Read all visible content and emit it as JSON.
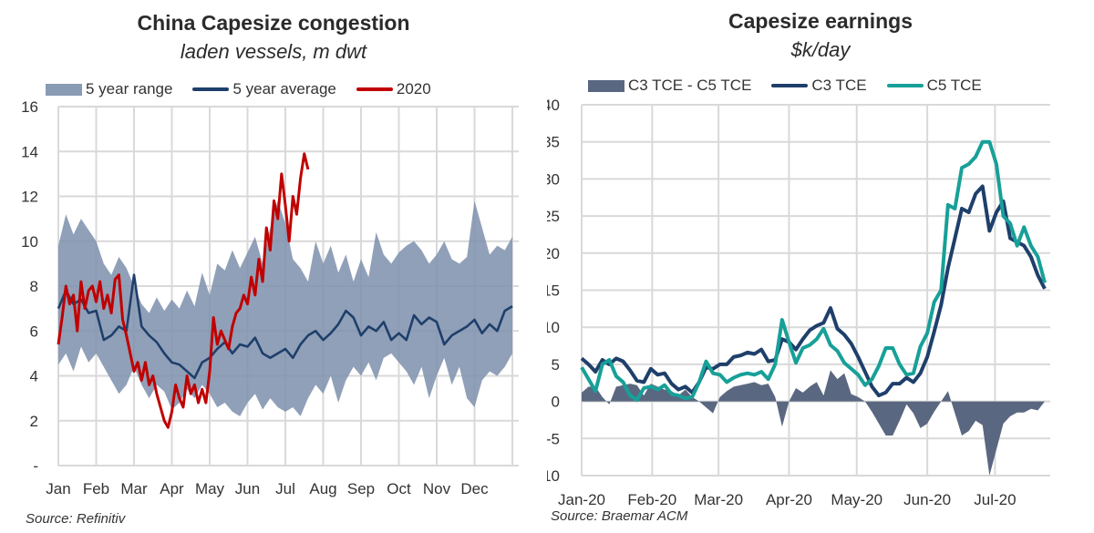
{
  "left": {
    "title": "China Capesize congestion",
    "subtitle": "laden vessels, m dwt",
    "source": "Source: Refinitiv",
    "legend": [
      {
        "label": "5 year range",
        "kind": "box",
        "color": "#8a9bb4"
      },
      {
        "label": "5 year average",
        "kind": "line",
        "color": "#1f3f6b"
      },
      {
        "label": "2020",
        "kind": "line",
        "color": "#c00000"
      }
    ]
  },
  "right": {
    "title": "Capesize earnings",
    "subtitle": "$k/day",
    "source": "Source: Braemar ACM",
    "legend": [
      {
        "label": "C3 TCE - C5 TCE",
        "kind": "box",
        "color": "#5a6780"
      },
      {
        "label": "C3 TCE",
        "kind": "line",
        "color": "#1f3f6b"
      },
      {
        "label": "C5 TCE",
        "kind": "line",
        "color": "#17a098"
      }
    ]
  },
  "chart_data": [
    {
      "type": "area",
      "title": "China Capesize congestion",
      "subtitle": "laden vessels, m dwt",
      "xlabel": "",
      "ylabel": "",
      "x_unit": "month index (0=Jan start, 12=Dec end)",
      "xlim": [
        0,
        12
      ],
      "ylim": [
        0,
        16
      ],
      "yticks": [
        0,
        2,
        4,
        6,
        8,
        10,
        12,
        14,
        16
      ],
      "ytick_labels": [
        "-",
        "2",
        "4",
        "6",
        "8",
        "10",
        "12",
        "14",
        "16"
      ],
      "xtick_labels": [
        "Jan",
        "Feb",
        "Mar",
        "Apr",
        "May",
        "Jun",
        "Jul",
        "Aug",
        "Sep",
        "Oct",
        "Nov",
        "Dec"
      ],
      "grid": true,
      "legend_position": "top",
      "series": [
        {
          "name": "5 year range",
          "kind": "band",
          "x": [
            0,
            0.2,
            0.4,
            0.6,
            0.8,
            1.0,
            1.2,
            1.4,
            1.6,
            1.8,
            2.0,
            2.2,
            2.4,
            2.6,
            2.8,
            3.0,
            3.2,
            3.4,
            3.6,
            3.8,
            4.0,
            4.2,
            4.4,
            4.6,
            4.8,
            5.0,
            5.2,
            5.4,
            5.6,
            5.8,
            6.0,
            6.2,
            6.4,
            6.6,
            6.8,
            7.0,
            7.2,
            7.4,
            7.6,
            7.8,
            8.0,
            8.2,
            8.4,
            8.6,
            8.8,
            9.0,
            9.2,
            9.4,
            9.6,
            9.8,
            10.0,
            10.2,
            10.4,
            10.6,
            10.8,
            11.0,
            11.2,
            11.4,
            11.6,
            11.8,
            12.0
          ],
          "upper": [
            9.8,
            11.2,
            10.3,
            11.0,
            10.5,
            10.0,
            9.0,
            8.5,
            9.3,
            8.8,
            8.0,
            7.2,
            6.8,
            7.5,
            6.9,
            7.4,
            7.0,
            7.8,
            7.1,
            8.6,
            7.6,
            9.0,
            8.7,
            9.6,
            8.8,
            9.5,
            10.2,
            9.0,
            10.6,
            11.8,
            10.8,
            9.2,
            8.8,
            8.2,
            10.0,
            9.0,
            9.8,
            8.6,
            9.4,
            8.2,
            9.2,
            8.4,
            10.4,
            9.4,
            9.0,
            9.5,
            9.8,
            10.0,
            9.6,
            9.0,
            9.4,
            10.0,
            9.2,
            9.0,
            9.3,
            11.8,
            10.6,
            9.4,
            9.8,
            9.6,
            10.2
          ],
          "lower": [
            4.5,
            5.0,
            4.2,
            5.3,
            4.6,
            5.0,
            4.4,
            3.8,
            3.2,
            3.6,
            4.4,
            3.6,
            3.0,
            3.6,
            3.3,
            2.5,
            2.8,
            3.4,
            3.0,
            3.6,
            3.2,
            2.6,
            2.8,
            2.4,
            2.2,
            2.8,
            3.2,
            2.5,
            3.0,
            2.6,
            2.4,
            2.6,
            2.2,
            3.0,
            3.6,
            3.2,
            4.0,
            2.8,
            3.8,
            4.4,
            4.0,
            4.6,
            3.8,
            4.8,
            5.0,
            4.6,
            4.2,
            3.6,
            4.4,
            3.0,
            4.0,
            4.8,
            3.6,
            4.4,
            3.0,
            2.6,
            3.8,
            4.2,
            4.0,
            4.4,
            5.0
          ]
        },
        {
          "name": "5 year average",
          "kind": "line",
          "x": [
            0,
            0.2,
            0.4,
            0.6,
            0.8,
            1.0,
            1.2,
            1.4,
            1.6,
            1.8,
            2.0,
            2.2,
            2.4,
            2.6,
            2.8,
            3.0,
            3.2,
            3.4,
            3.6,
            3.8,
            4.0,
            4.2,
            4.4,
            4.6,
            4.8,
            5.0,
            5.2,
            5.4,
            5.6,
            5.8,
            6.0,
            6.2,
            6.4,
            6.6,
            6.8,
            7.0,
            7.2,
            7.4,
            7.6,
            7.8,
            8.0,
            8.2,
            8.4,
            8.6,
            8.8,
            9.0,
            9.2,
            9.4,
            9.6,
            9.8,
            10.0,
            10.2,
            10.4,
            10.6,
            10.8,
            11.0,
            11.2,
            11.4,
            11.6,
            11.8,
            12.0
          ],
          "y": [
            7.0,
            7.8,
            7.2,
            7.4,
            6.8,
            6.9,
            5.6,
            5.8,
            6.2,
            6.0,
            8.5,
            6.2,
            5.8,
            5.5,
            5.0,
            4.6,
            4.5,
            4.2,
            3.9,
            4.6,
            4.8,
            5.2,
            5.5,
            5.0,
            5.4,
            5.3,
            5.7,
            5.0,
            4.8,
            5.0,
            5.2,
            4.8,
            5.4,
            5.8,
            6.0,
            5.6,
            5.9,
            6.3,
            6.9,
            6.6,
            5.8,
            6.2,
            6.0,
            6.4,
            5.6,
            5.9,
            5.6,
            6.7,
            6.3,
            6.6,
            6.4,
            5.4,
            5.8,
            6.0,
            6.2,
            6.5,
            5.9,
            6.3,
            6.0,
            6.9,
            7.1
          ]
        },
        {
          "name": "2020",
          "kind": "line",
          "x": [
            0,
            0.1,
            0.2,
            0.3,
            0.4,
            0.5,
            0.6,
            0.7,
            0.8,
            0.9,
            1.0,
            1.1,
            1.2,
            1.3,
            1.4,
            1.5,
            1.6,
            1.7,
            1.8,
            1.9,
            2.0,
            2.1,
            2.2,
            2.3,
            2.4,
            2.5,
            2.6,
            2.7,
            2.8,
            2.9,
            3.0,
            3.1,
            3.2,
            3.3,
            3.4,
            3.5,
            3.6,
            3.7,
            3.8,
            3.9,
            4.0,
            4.1,
            4.2,
            4.3,
            4.4,
            4.5,
            4.6,
            4.7,
            4.8,
            4.9,
            5.0,
            5.1,
            5.2,
            5.3,
            5.4,
            5.5,
            5.6,
            5.7,
            5.8,
            5.9,
            6.0,
            6.1,
            6.2,
            6.3,
            6.4,
            6.5,
            6.6
          ],
          "y": [
            5.4,
            6.6,
            8.0,
            7.2,
            7.6,
            6.0,
            8.2,
            7.0,
            7.8,
            8.0,
            7.3,
            8.2,
            7.0,
            7.6,
            6.8,
            8.3,
            8.5,
            6.5,
            5.8,
            5.0,
            4.2,
            4.6,
            3.8,
            4.6,
            3.6,
            4.0,
            3.2,
            2.6,
            2.0,
            1.7,
            2.4,
            3.6,
            3.0,
            2.6,
            4.0,
            3.2,
            3.6,
            2.8,
            3.4,
            2.8,
            4.2,
            6.6,
            5.4,
            6.0,
            5.6,
            5.2,
            6.2,
            6.8,
            7.0,
            7.6,
            7.2,
            8.4,
            7.6,
            9.2,
            8.2,
            10.6,
            9.6,
            11.8,
            11.0,
            13.0,
            11.6,
            10.0,
            12.0,
            11.2,
            12.8,
            13.9,
            13.2
          ]
        }
      ]
    },
    {
      "type": "line",
      "title": "Capesize earnings",
      "subtitle": "$k/day",
      "xlabel": "",
      "ylabel": "",
      "x_unit": "month index (0=Jan-20)",
      "xlim": [
        0,
        6.7
      ],
      "ylim": [
        -10,
        40
      ],
      "yticks": [
        -10,
        -5,
        0,
        5,
        10,
        15,
        20,
        25,
        30,
        35,
        40
      ],
      "xtick_labels": [
        "Jan-20",
        "Feb-20",
        "Mar-20",
        "Apr-20",
        "May-20",
        "Jun-20",
        "Jul-20"
      ],
      "grid": true,
      "legend_position": "top",
      "series": [
        {
          "name": "C3 TCE",
          "kind": "line",
          "x": [
            0,
            0.1,
            0.2,
            0.3,
            0.4,
            0.5,
            0.6,
            0.7,
            0.8,
            0.9,
            1.0,
            1.1,
            1.2,
            1.3,
            1.4,
            1.5,
            1.6,
            1.7,
            1.8,
            1.9,
            2.0,
            2.1,
            2.2,
            2.3,
            2.4,
            2.5,
            2.6,
            2.7,
            2.8,
            2.9,
            3.0,
            3.1,
            3.2,
            3.3,
            3.4,
            3.5,
            3.6,
            3.7,
            3.8,
            3.9,
            4.0,
            4.1,
            4.2,
            4.3,
            4.4,
            4.5,
            4.6,
            4.7,
            4.8,
            4.9,
            5.0,
            5.1,
            5.2,
            5.3,
            5.4,
            5.5,
            5.6,
            5.7,
            5.8,
            5.9,
            6.0,
            6.1,
            6.2,
            6.3,
            6.4,
            6.5,
            6.6,
            6.7
          ],
          "y": [
            5.8,
            5.0,
            4.0,
            5.6,
            5.0,
            5.8,
            5.4,
            4.2,
            2.8,
            2.6,
            4.4,
            3.6,
            3.8,
            2.4,
            1.6,
            2.0,
            1.2,
            2.6,
            4.6,
            4.4,
            5.0,
            5.0,
            6.0,
            6.2,
            6.6,
            6.4,
            7.0,
            5.4,
            5.6,
            8.4,
            8.0,
            7.0,
            8.4,
            9.6,
            10.2,
            10.6,
            12.6,
            9.8,
            9.0,
            7.8,
            6.0,
            4.0,
            2.0,
            0.8,
            1.2,
            2.4,
            2.4,
            3.2,
            2.6,
            3.8,
            6.0,
            9.4,
            13.0,
            18.0,
            22.0,
            26.0,
            25.5,
            28.0,
            29.0,
            23.0,
            25.5,
            27.0,
            22.0,
            21.5,
            21.0,
            19.5,
            17.0,
            15.2
          ]
        },
        {
          "name": "C5 TCE",
          "kind": "line",
          "x": [
            0,
            0.1,
            0.2,
            0.3,
            0.4,
            0.5,
            0.6,
            0.7,
            0.8,
            0.9,
            1.0,
            1.1,
            1.2,
            1.3,
            1.4,
            1.5,
            1.6,
            1.7,
            1.8,
            1.9,
            2.0,
            2.1,
            2.2,
            2.3,
            2.4,
            2.5,
            2.6,
            2.7,
            2.8,
            2.9,
            3.0,
            3.1,
            3.2,
            3.3,
            3.4,
            3.5,
            3.6,
            3.7,
            3.8,
            3.9,
            4.0,
            4.1,
            4.2,
            4.3,
            4.4,
            4.5,
            4.6,
            4.7,
            4.8,
            4.9,
            5.0,
            5.1,
            5.2,
            5.3,
            5.4,
            5.5,
            5.6,
            5.7,
            5.8,
            5.9,
            6.0,
            6.1,
            6.2,
            6.3,
            6.4,
            6.5,
            6.6,
            6.7
          ],
          "y": [
            4.6,
            3.0,
            1.4,
            5.0,
            5.6,
            3.4,
            2.6,
            0.8,
            0.2,
            1.8,
            2.0,
            1.6,
            2.2,
            1.0,
            0.8,
            0.4,
            0.6,
            2.6,
            5.4,
            3.8,
            3.6,
            2.6,
            3.2,
            3.6,
            3.8,
            3.6,
            4.0,
            3.0,
            5.0,
            11.0,
            8.0,
            5.2,
            7.2,
            7.6,
            8.4,
            9.8,
            7.6,
            6.8,
            5.2,
            4.4,
            3.6,
            2.2,
            3.0,
            4.8,
            7.2,
            7.2,
            5.0,
            3.6,
            3.8,
            7.4,
            9.2,
            13.4,
            15.0,
            26.5,
            26.0,
            31.5,
            32.0,
            33.0,
            35.0,
            35.0,
            32.0,
            25.0,
            24.0,
            21.0,
            23.5,
            21.0,
            19.5,
            16.0
          ]
        },
        {
          "name": "C3 TCE - C5 TCE",
          "kind": "area",
          "x": [
            0,
            0.1,
            0.2,
            0.3,
            0.4,
            0.5,
            0.6,
            0.7,
            0.8,
            0.9,
            1.0,
            1.1,
            1.2,
            1.3,
            1.4,
            1.5,
            1.6,
            1.7,
            1.8,
            1.9,
            2.0,
            2.1,
            2.2,
            2.3,
            2.4,
            2.5,
            2.6,
            2.7,
            2.8,
            2.9,
            3.0,
            3.1,
            3.2,
            3.3,
            3.4,
            3.5,
            3.6,
            3.7,
            3.8,
            3.9,
            4.0,
            4.1,
            4.2,
            4.3,
            4.4,
            4.5,
            4.6,
            4.7,
            4.8,
            4.9,
            5.0,
            5.1,
            5.2,
            5.3,
            5.4,
            5.5,
            5.6,
            5.7,
            5.8,
            5.9,
            6.0,
            6.1,
            6.2,
            6.3,
            6.4,
            6.5,
            6.6,
            6.7
          ],
          "y": [
            1.2,
            2.0,
            2.0,
            0.6,
            -0.4,
            2.0,
            2.2,
            2.4,
            2.2,
            0.8,
            2.4,
            2.0,
            1.6,
            1.4,
            0.8,
            1.6,
            0.6,
            0.0,
            -0.8,
            -1.6,
            0.6,
            1.4,
            2.0,
            2.2,
            2.4,
            2.6,
            2.2,
            2.4,
            0.6,
            -3.4,
            0.0,
            1.8,
            1.2,
            2.0,
            2.6,
            0.8,
            4.2,
            3.0,
            3.8,
            1.0,
            0.6,
            0.0,
            -1.4,
            -3.0,
            -4.6,
            -4.6,
            -2.6,
            -0.4,
            -1.6,
            -3.6,
            -3.0,
            -1.4,
            0.0,
            1.4,
            -1.6,
            -4.6,
            -4.0,
            -2.6,
            -3.2,
            -10.0,
            -6.5,
            -3.0,
            -2.0,
            -1.5,
            -1.5,
            -1.0,
            -1.2,
            0.0
          ]
        }
      ]
    }
  ]
}
